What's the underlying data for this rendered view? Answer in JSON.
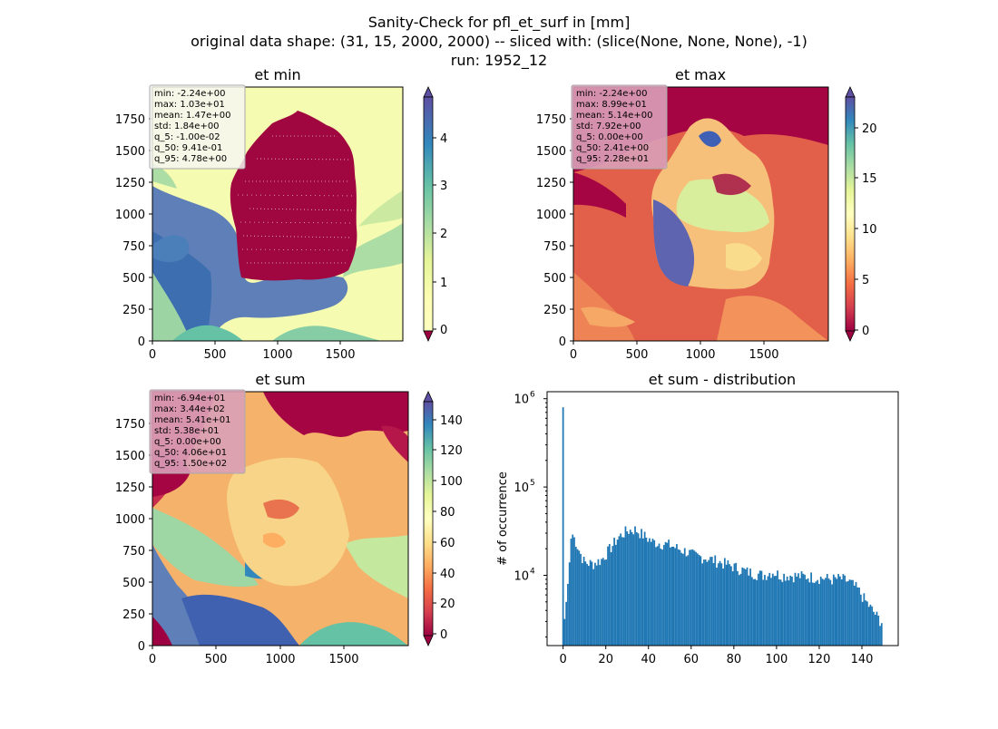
{
  "figure": {
    "title_line1": "Sanity-Check for pfl_et_surf in [mm]",
    "title_line2": "original data shape: (31, 15, 2000, 2000) -- sliced with: (slice(None, None, None), -1)",
    "title_line3": "run: 1952_12"
  },
  "chart_data": [
    {
      "type": "heatmap",
      "title": "et min",
      "xlabel": "",
      "ylabel": "",
      "xlim": [
        0,
        2000
      ],
      "ylim": [
        0,
        2000
      ],
      "x_ticks": [
        "0",
        "500",
        "1000",
        "1500"
      ],
      "y_ticks": [
        "0",
        "250",
        "500",
        "750",
        "1000",
        "1250",
        "1500",
        "1750"
      ],
      "colormap": "Spectral",
      "colorbar": {
        "range": [
          0,
          4.9
        ],
        "ticks": [
          "0",
          "1",
          "2",
          "3",
          "4"
        ],
        "extend": "both"
      },
      "stats": [
        "min: -2.24e+00",
        "max: 1.03e+01",
        "mean: 1.47e+00",
        "std: 1.84e+00",
        "q_5: -1.00e-02",
        "q_50: 9.41e-01",
        "q_95: 4.78e+00"
      ],
      "stats_box_color": "#f6f6f0"
    },
    {
      "type": "heatmap",
      "title": "et max",
      "xlabel": "",
      "ylabel": "",
      "xlim": [
        0,
        2000
      ],
      "ylim": [
        0,
        2000
      ],
      "x_ticks": [
        "0",
        "500",
        "1000",
        "1500"
      ],
      "y_ticks": [
        "0",
        "250",
        "500",
        "750",
        "1000",
        "1250",
        "1500",
        "1750"
      ],
      "colormap": "Spectral",
      "colorbar": {
        "range": [
          0,
          23
        ],
        "ticks": [
          "0",
          "5",
          "10",
          "15",
          "20"
        ],
        "extend": "both"
      },
      "stats": [
        "min: -2.24e+00",
        "max: 8.99e+01",
        "mean: 5.14e+00",
        "std: 7.92e+00",
        "q_5: 0.00e+00",
        "q_50: 2.41e+00",
        "q_95: 2.28e+01"
      ],
      "stats_box_color": "#d9a0b8"
    },
    {
      "type": "heatmap",
      "title": "et sum",
      "xlabel": "",
      "ylabel": "",
      "xlim": [
        0,
        2000
      ],
      "ylim": [
        0,
        2000
      ],
      "x_ticks": [
        "0",
        "500",
        "1000",
        "1500"
      ],
      "y_ticks": [
        "0",
        "250",
        "500",
        "750",
        "1000",
        "1250",
        "1500",
        "1750"
      ],
      "colormap": "Spectral",
      "colorbar": {
        "range": [
          0,
          152
        ],
        "ticks": [
          "0",
          "20",
          "40",
          "60",
          "80",
          "100",
          "120",
          "140"
        ],
        "extend": "both"
      },
      "stats": [
        "min: -6.94e+01",
        "max: 3.44e+02",
        "mean: 5.41e+01",
        "std: 5.38e+01",
        "q_5: 0.00e+00",
        "q_50: 4.06e+01",
        "q_95: 1.50e+02"
      ],
      "stats_box_color": "#d9a0b8"
    },
    {
      "type": "bar",
      "title": "et sum - distribution",
      "xlabel": "",
      "ylabel": "# of occurrence",
      "xlim": [
        -7.5,
        157
      ],
      "ylim": [
        1600,
        1200000
      ],
      "yscale": "log",
      "x_ticks": [
        0,
        20,
        40,
        60,
        80,
        100,
        120,
        140
      ],
      "y_ticks": [
        {
          "value": 10000,
          "label": "10",
          "exp": "4"
        },
        {
          "value": 100000,
          "label": "10",
          "exp": "5"
        },
        {
          "value": 1000000,
          "label": "10",
          "exp": "6"
        }
      ],
      "bar_color": "#1f77b4",
      "bins": {
        "start": 0,
        "width": 0.75
      },
      "anchors": [
        [
          0,
          800000
        ],
        [
          0.75,
          3200
        ],
        [
          1.5,
          5000
        ],
        [
          2.25,
          8000
        ],
        [
          3,
          14000
        ],
        [
          3.75,
          26000
        ],
        [
          4.5,
          29000
        ],
        [
          6,
          24000
        ],
        [
          8,
          18000
        ],
        [
          10,
          14000
        ],
        [
          14,
          13500
        ],
        [
          18,
          15000
        ],
        [
          22,
          20000
        ],
        [
          26,
          27000
        ],
        [
          30,
          32000
        ],
        [
          34,
          33000
        ],
        [
          38,
          28000
        ],
        [
          42,
          24000
        ],
        [
          46,
          23000
        ],
        [
          50,
          22000
        ],
        [
          54,
          20000
        ],
        [
          58,
          18500
        ],
        [
          62,
          16500
        ],
        [
          66,
          16000
        ],
        [
          70,
          15000
        ],
        [
          74,
          14000
        ],
        [
          78,
          13000
        ],
        [
          82,
          12000
        ],
        [
          86,
          11000
        ],
        [
          90,
          10500
        ],
        [
          94,
          10000
        ],
        [
          98,
          11000
        ],
        [
          102,
          10000
        ],
        [
          106,
          10000
        ],
        [
          110,
          9800
        ],
        [
          114,
          9700
        ],
        [
          118,
          9500
        ],
        [
          122,
          9300
        ],
        [
          126,
          9000
        ],
        [
          130,
          9200
        ],
        [
          134,
          8500
        ],
        [
          138,
          7000
        ],
        [
          142,
          5000
        ],
        [
          145,
          4000
        ],
        [
          148,
          3200
        ],
        [
          149.25,
          3000
        ]
      ]
    }
  ]
}
